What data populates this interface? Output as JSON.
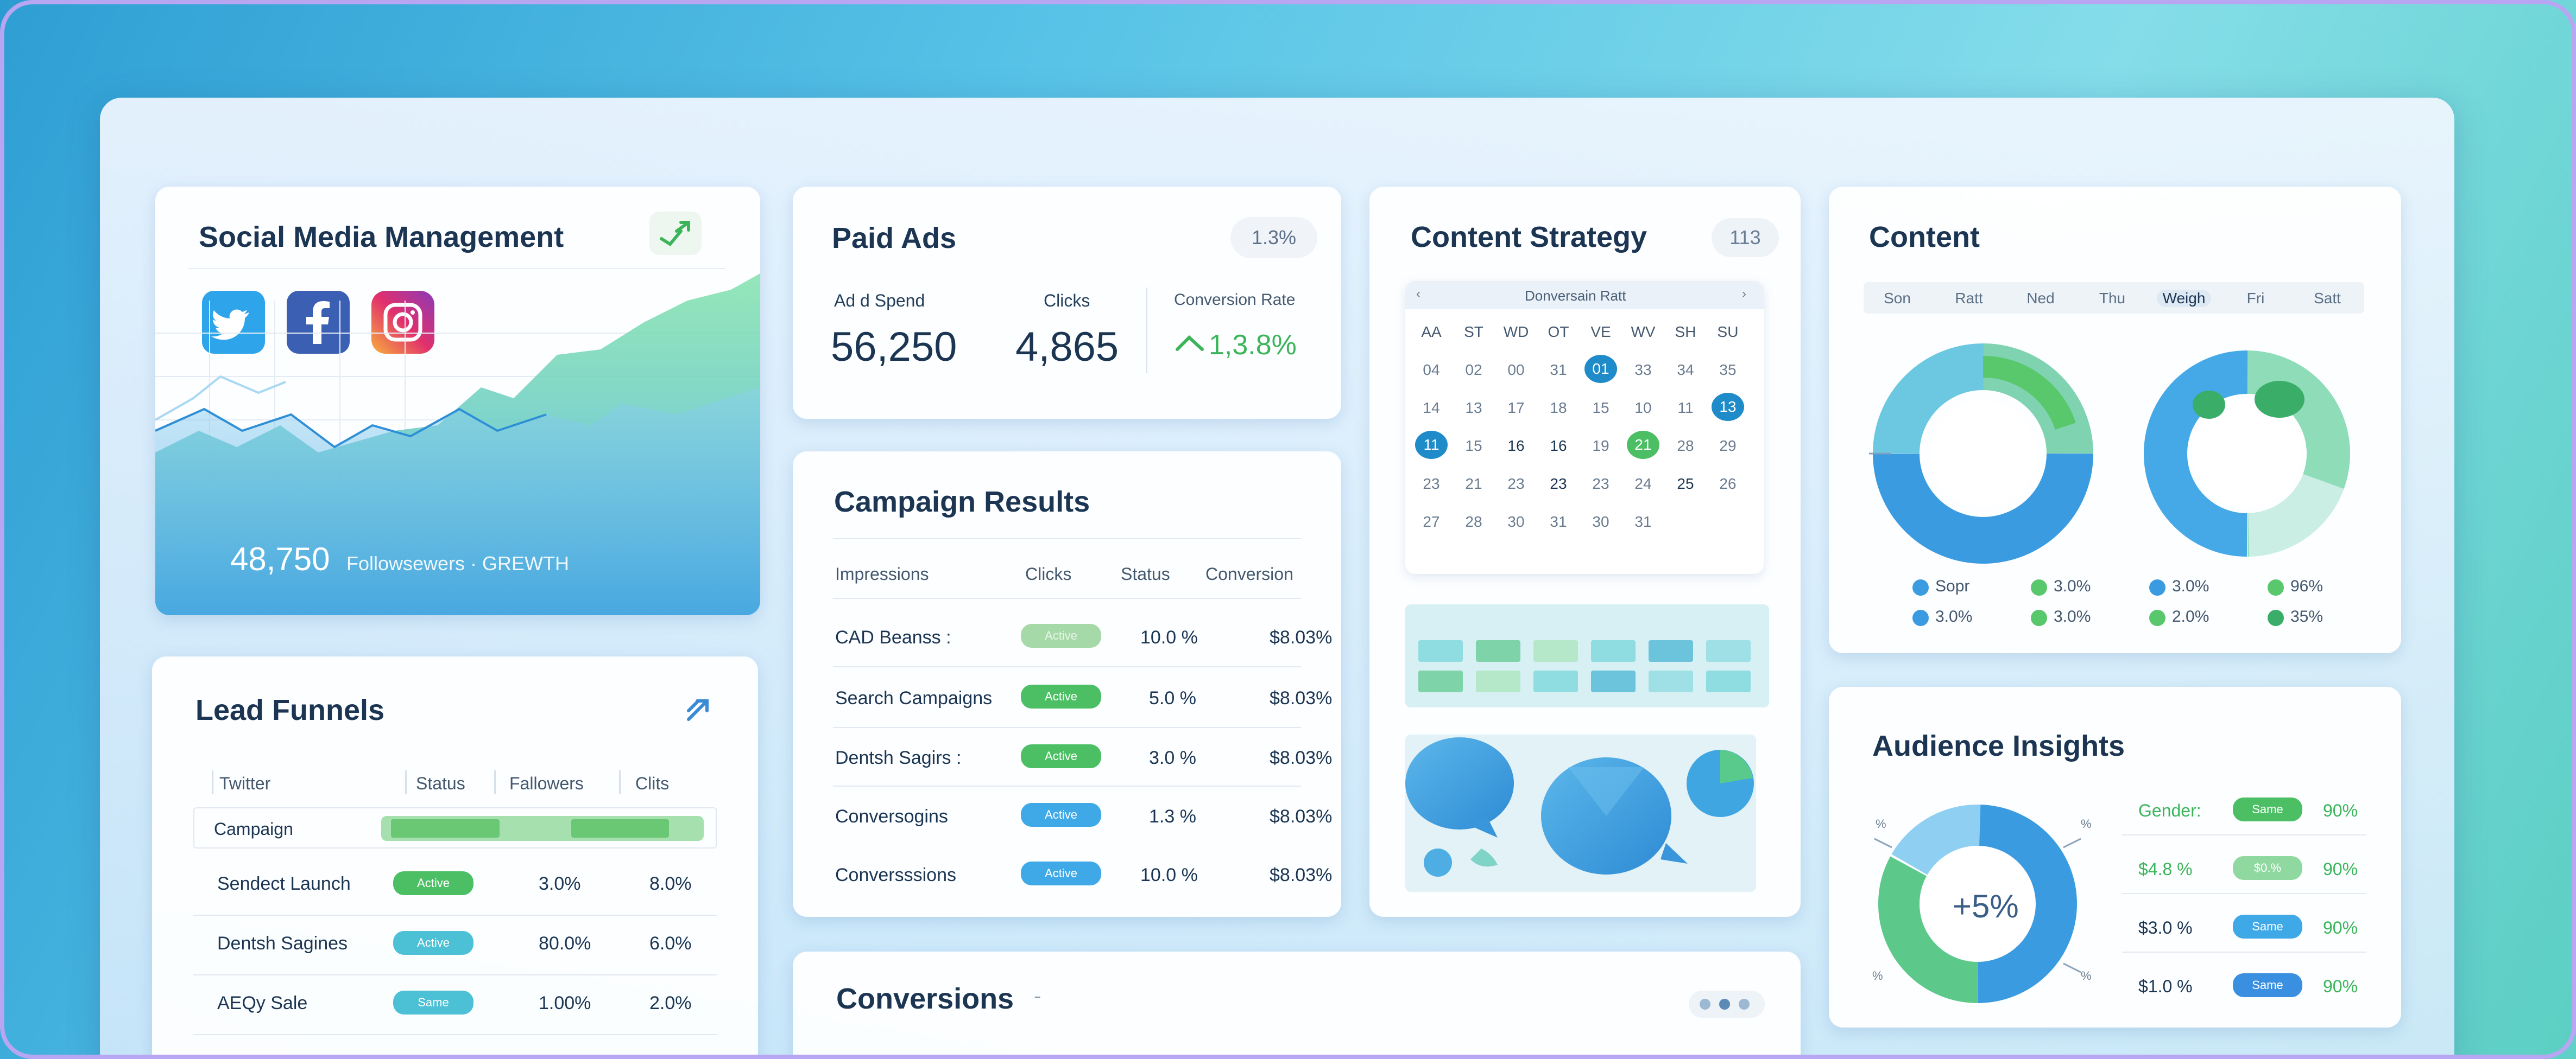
{
  "colors": {
    "accent": "#2f9fd4",
    "green": "#3cb55a",
    "teal": "#37b8cf",
    "blue": "#3a9be0"
  },
  "social": {
    "title": "Social Media Management",
    "icons": [
      "twitter-icon",
      "facebook-icon",
      "instagram-icon"
    ],
    "followers_value": "48,750",
    "followers_label": "Followsewers · GREWTH"
  },
  "paid_ads": {
    "title": "Paid Ads",
    "badge": "1.3%",
    "metrics": [
      {
        "label": "Ad d Spend",
        "value": "56,250"
      },
      {
        "label": "Clicks",
        "value": "4,865"
      },
      {
        "label": "Conversion Rate",
        "value": "1,3.8%"
      }
    ]
  },
  "campaign": {
    "title": "Campaign Results",
    "headers": [
      "Impressions",
      "Clicks",
      "Status",
      "Conversion"
    ],
    "rows": [
      {
        "name": "CAD Beanss :",
        "status": "Active",
        "pct": "10.0 %",
        "conv": "$8.03%",
        "style": "faded"
      },
      {
        "name": "Search Campaigns",
        "status": "Active",
        "pct": "5.0 %",
        "conv": "$8.03%",
        "style": "green"
      },
      {
        "name": "Dentsh Sagirs :",
        "status": "Active",
        "pct": "3.0 %",
        "conv": "$8.03%",
        "style": "green"
      },
      {
        "name": "Conversogins",
        "status": "Active",
        "pct": "1.3 %",
        "conv": "$8.03%",
        "style": "blue"
      },
      {
        "name": "Conversssions",
        "status": "Active",
        "pct": "10.0 %",
        "conv": "$8.03%",
        "style": "blue"
      }
    ]
  },
  "strategy": {
    "title": "Content Strategy",
    "badge": "113",
    "calendar": {
      "header": "Donversain Ratt",
      "days": [
        "AA",
        "ST",
        "WD",
        "OT",
        "VE",
        "WV",
        "SH",
        "SU"
      ],
      "weeks": [
        [
          "04",
          "02",
          "00",
          "31",
          "01",
          "33",
          "34",
          "35"
        ],
        [
          "14",
          "13",
          "17",
          "18",
          "15",
          "10",
          "11",
          "13"
        ],
        [
          "11",
          "15",
          "16",
          "16",
          "19",
          "21",
          "28",
          "29"
        ],
        [
          "23",
          "21",
          "23",
          "23",
          "23",
          "24",
          "25",
          "26"
        ],
        [
          "27",
          "28",
          "30",
          "31",
          "30",
          "31",
          "",
          ""
        ]
      ]
    }
  },
  "content": {
    "title": "Content",
    "days": [
      "Son",
      "Ratt",
      "Ned",
      "Thu",
      "Weigh",
      "Fri",
      "Satt"
    ],
    "legend": [
      [
        "Sopr",
        "3.0%",
        "3.0%",
        "96%"
      ],
      [
        "3.0%",
        "3.0%",
        "2.0%",
        "35%"
      ]
    ]
  },
  "audience": {
    "title": "Audience Insights",
    "center": "+5%",
    "rows": [
      {
        "label": "Gender:",
        "pill": "Same",
        "pct": "90%"
      },
      {
        "label": "$4.8 %",
        "pill": "$0.%",
        "pct": "90%"
      },
      {
        "label": "$3.0 %",
        "pill": "Same",
        "pct": "90%"
      },
      {
        "label": "$1.0 %",
        "pill": "Same",
        "pct": "90%"
      }
    ],
    "ticks": [
      "%",
      "%",
      "%",
      "%"
    ]
  },
  "funnels": {
    "title": "Lead Funnels",
    "headers": [
      "Twitter",
      "Status",
      "Fallowers",
      "Clits"
    ],
    "campaign_label": "Campaign",
    "rows": [
      {
        "name": "Sendect Launch",
        "status": "Active",
        "a": "3.0%",
        "b": "8.0%"
      },
      {
        "name": "Dentsh Sagines",
        "status": "Active",
        "a": "80.0%",
        "b": "6.0%"
      },
      {
        "name": "AEQy Sale",
        "status": "Same",
        "a": "1.00%",
        "b": "2.0%"
      }
    ]
  },
  "conversions": {
    "title": "Conversions"
  }
}
